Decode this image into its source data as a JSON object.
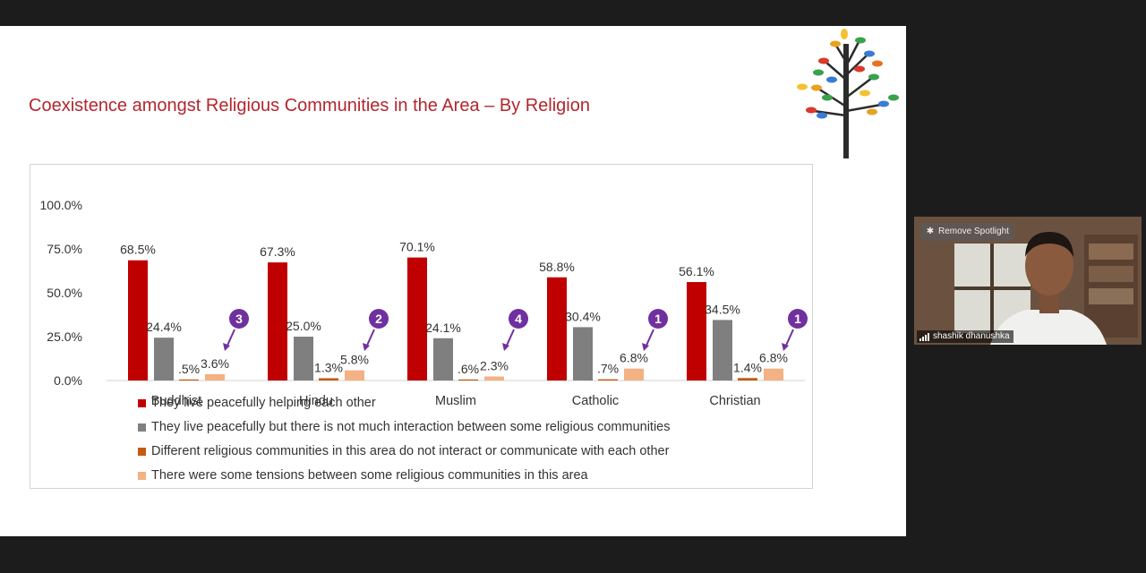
{
  "slide": {
    "title": "Coexistence amongst Religious Communities in the Area – By Religion"
  },
  "chart_data": {
    "type": "bar",
    "title": "",
    "xlabel": "",
    "ylabel": "",
    "ylim": [
      0,
      100
    ],
    "yticks": [
      "0.0%",
      "25.0%",
      "50.0%",
      "75.0%",
      "100.0%"
    ],
    "categories": [
      "Buddhist",
      "Hindu",
      "Muslim",
      "Catholic",
      "Christian"
    ],
    "grid": false,
    "legend_position": "bottom",
    "series": [
      {
        "name": "They live peacefully helping each other",
        "color": "#c00000",
        "values": [
          68.5,
          67.3,
          70.1,
          58.8,
          56.1
        ],
        "labels": [
          "68.5%",
          "67.3%",
          "70.1%",
          "58.8%",
          "56.1%"
        ]
      },
      {
        "name": "They live peacefully but there is not much interaction between some religious communities",
        "color": "#7f7f7f",
        "values": [
          24.4,
          25.0,
          24.1,
          30.4,
          34.5
        ],
        "labels": [
          "24.4%",
          "25.0%",
          "24.1%",
          "30.4%",
          "34.5%"
        ]
      },
      {
        "name": "Different religious communities in this area do not interact or communicate with each other",
        "color": "#c55a11",
        "values": [
          0.5,
          1.3,
          0.6,
          0.7,
          1.4
        ],
        "labels": [
          ".5%",
          "1.3%",
          ".6%",
          ".7%",
          "1.4%"
        ]
      },
      {
        "name": "There were some tensions between some religious communities in this area",
        "color": "#f4b183",
        "values": [
          3.6,
          5.8,
          2.3,
          6.8,
          6.8
        ],
        "labels": [
          "3.6%",
          "5.8%",
          "2.3%",
          "6.8%",
          "6.8%"
        ]
      }
    ],
    "annotations": [
      "3",
      "2",
      "4",
      "1",
      "1"
    ],
    "annotation_color": "#7030a0"
  },
  "video": {
    "spotlight_label": "Remove Spotlight",
    "participant_name": "shashik dhanushka"
  }
}
